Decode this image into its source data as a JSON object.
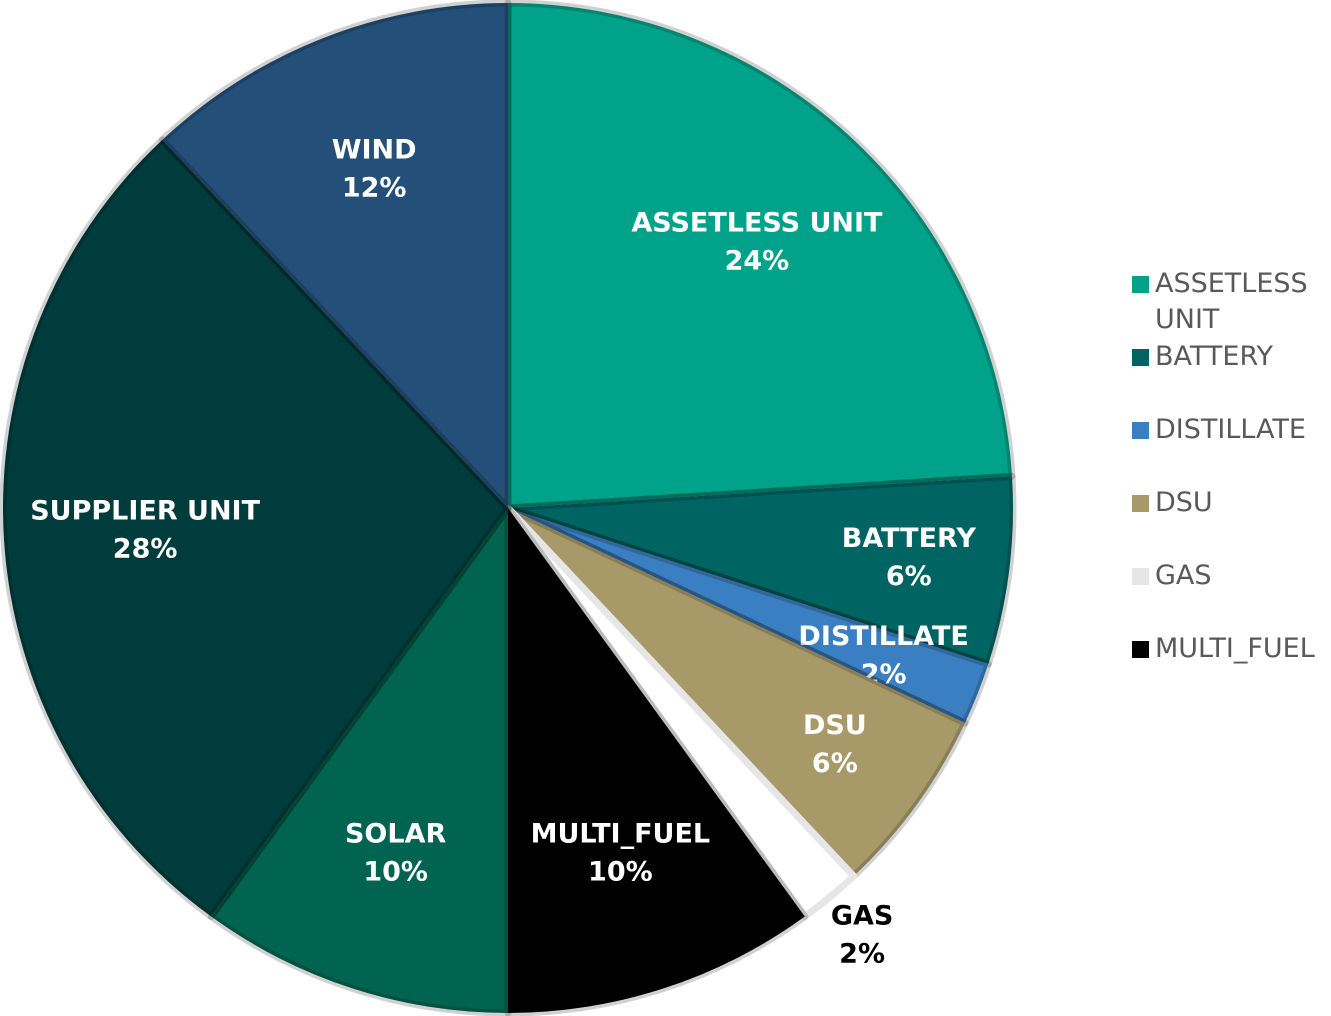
{
  "chart_data": {
    "type": "pie",
    "series": [
      {
        "name": "ASSETLESS UNIT",
        "color": "#00a38a",
        "values": [
          24
        ],
        "value_labels": [
          "24%"
        ]
      },
      {
        "name": "BATTERY",
        "color": "#006462",
        "values": [
          6
        ],
        "value_labels": [
          "6%"
        ]
      },
      {
        "name": "DISTILLATE",
        "color": "#3a7fc1",
        "values": [
          2
        ],
        "value_labels": [
          "2%"
        ]
      },
      {
        "name": "DSU",
        "color": "#a89a68",
        "values": [
          6
        ],
        "value_labels": [
          "6%"
        ]
      },
      {
        "name": "GAS",
        "color": "#e6e6e6",
        "values": [
          2
        ],
        "value_labels": [
          "2%"
        ]
      },
      {
        "name": "MULTI_FUEL",
        "color": "#000000",
        "values": [
          10
        ],
        "value_labels": [
          "10%"
        ]
      },
      {
        "name": "SOLAR",
        "color": "#006450",
        "values": [
          10
        ],
        "value_labels": [
          "10%"
        ]
      },
      {
        "name": "SUPPLIER UNIT",
        "color": "#003c3c",
        "values": [
          28
        ],
        "value_labels": [
          "28%"
        ]
      },
      {
        "name": "WIND",
        "color": "#234f78",
        "values": [
          12
        ],
        "value_labels": [
          "12%"
        ]
      }
    ],
    "legend": "right"
  }
}
